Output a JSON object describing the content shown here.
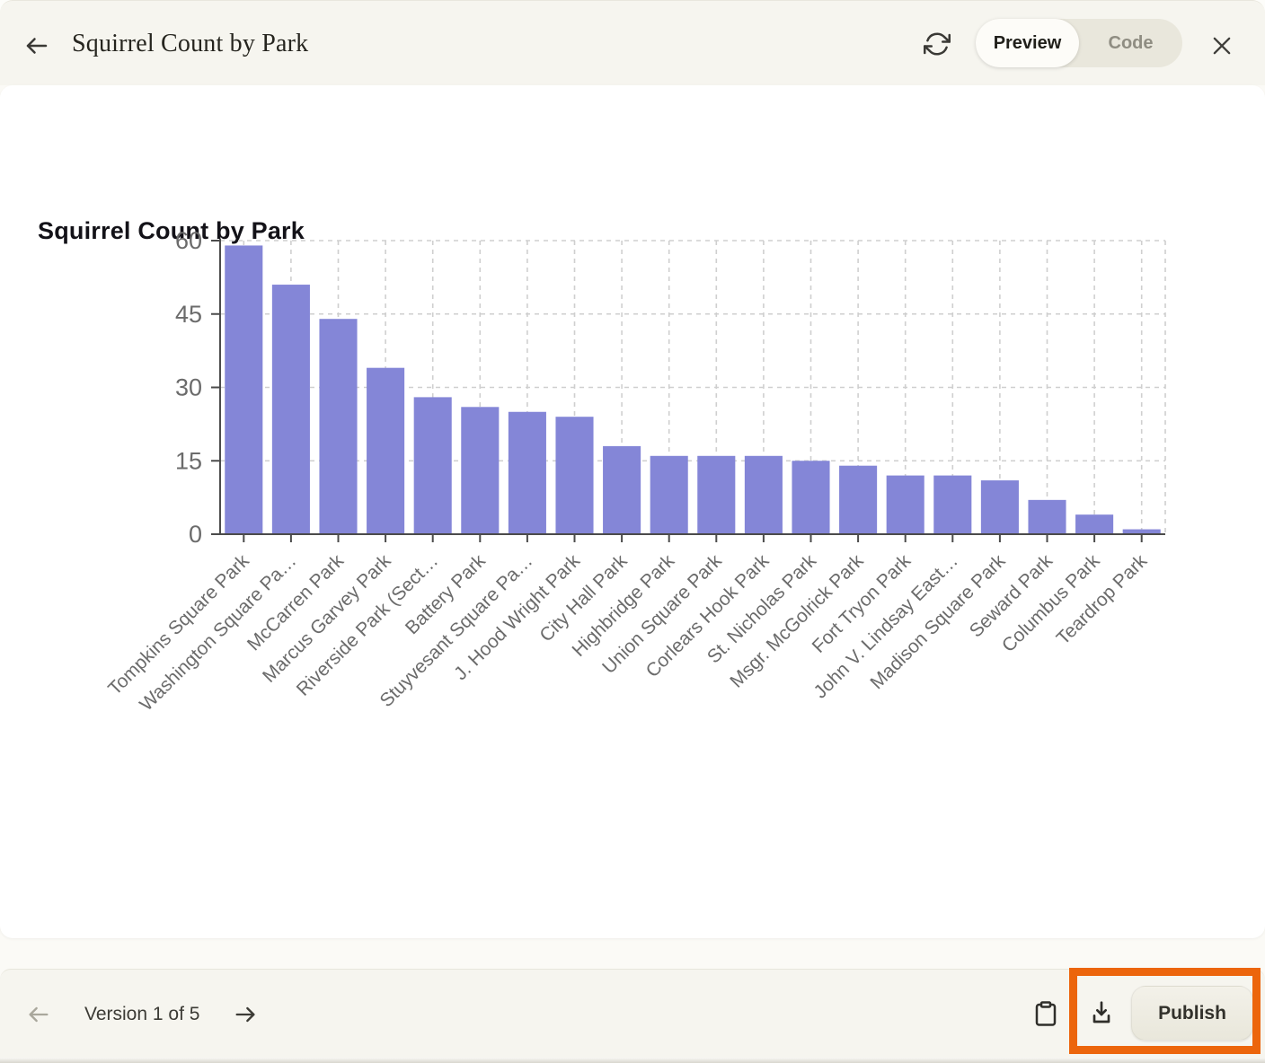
{
  "header": {
    "title": "Squirrel Count by Park",
    "toggle": {
      "preview_label": "Preview",
      "code_label": "Code"
    },
    "icons": {
      "back": "arrow-left",
      "refresh": "refresh-cw",
      "close": "x"
    }
  },
  "chart_data": {
    "type": "bar",
    "title": "Squirrel Count by Park",
    "categories": [
      "Tompkins Square Park",
      "Washington Square Pa…",
      "McCarren Park",
      "Marcus Garvey Park",
      "Riverside Park (Sect…",
      "Battery Park",
      "Stuyvesant Square Pa…",
      "J. Hood Wright Park",
      "City Hall Park",
      "Highbridge Park",
      "Union Square Park",
      "Corlears Hook Park",
      "St. Nicholas Park",
      "Msgr. McGolrick Park",
      "Fort Tryon Park",
      "John V. Lindsay East…",
      "Madison Square Park",
      "Seward Park",
      "Columbus Park",
      "Teardrop Park"
    ],
    "values": [
      59,
      51,
      44,
      34,
      28,
      26,
      25,
      24,
      18,
      16,
      16,
      16,
      15,
      14,
      12,
      12,
      11,
      7,
      4,
      1
    ],
    "xlabel": "",
    "ylabel": "",
    "ylim": [
      0,
      60
    ],
    "yticks": [
      0,
      15,
      30,
      45,
      60
    ],
    "bar_color": "#8486d7",
    "grid": true,
    "grid_style": "dashed",
    "legend": "none",
    "x_tick_rotation": -45
  },
  "footer": {
    "version_label": "Version 1 of 5",
    "publish_label": "Publish",
    "icons": {
      "previous": "arrow-left",
      "next": "arrow-right",
      "copy": "clipboard",
      "download": "download"
    }
  },
  "colors": {
    "annotation_highlight": "#ec650c",
    "chrome_background": "#f6f5ef",
    "panel_background": "#ffffff",
    "bar_fill": "#8486d7"
  }
}
